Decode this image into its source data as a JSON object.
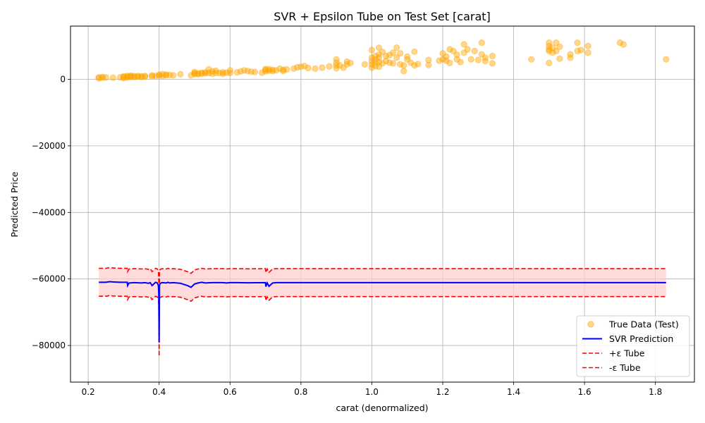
{
  "chart_data": {
    "type": "scatter",
    "title": "SVR + Epsilon Tube on Test Set [carat]",
    "xlabel": "carat (denormalized)",
    "ylabel": "Predicted Price",
    "xlim": [
      0.15,
      1.91
    ],
    "ylim": [
      -91000,
      16000
    ],
    "grid": true,
    "legend_position": "lower-right",
    "x_ticks": [
      0.2,
      0.4,
      0.6,
      0.8,
      1.0,
      1.2,
      1.4,
      1.6,
      1.8
    ],
    "x_tick_labels": [
      "0.2",
      "0.4",
      "0.6",
      "0.8",
      "1.0",
      "1.2",
      "1.4",
      "1.6",
      "1.8"
    ],
    "y_ticks": [
      0,
      -20000,
      -40000,
      -60000,
      -80000
    ],
    "y_tick_labels": [
      "0",
      "−20000",
      "−40000",
      "−60000",
      "−80000"
    ],
    "colors": {
      "true_data": "#ffa500",
      "prediction": "#0000ff",
      "tube": "#ff0000",
      "tube_fill": "#ffcccc",
      "grid": "#b0b0b0"
    },
    "series": [
      {
        "name": "True Data (Test)",
        "kind": "scatter",
        "x": [
          0.23,
          0.23,
          0.24,
          0.24,
          0.25,
          0.27,
          0.29,
          0.3,
          0.3,
          0.3,
          0.31,
          0.31,
          0.31,
          0.32,
          0.32,
          0.32,
          0.33,
          0.33,
          0.34,
          0.34,
          0.35,
          0.35,
          0.36,
          0.36,
          0.38,
          0.38,
          0.39,
          0.4,
          0.4,
          0.41,
          0.41,
          0.42,
          0.42,
          0.43,
          0.44,
          0.46,
          0.49,
          0.5,
          0.5,
          0.5,
          0.51,
          0.51,
          0.52,
          0.52,
          0.53,
          0.53,
          0.54,
          0.54,
          0.55,
          0.55,
          0.56,
          0.56,
          0.57,
          0.58,
          0.58,
          0.59,
          0.6,
          0.6,
          0.62,
          0.63,
          0.64,
          0.65,
          0.66,
          0.67,
          0.69,
          0.7,
          0.7,
          0.7,
          0.71,
          0.71,
          0.72,
          0.72,
          0.73,
          0.74,
          0.75,
          0.75,
          0.76,
          0.78,
          0.79,
          0.8,
          0.81,
          0.82,
          0.84,
          0.86,
          0.88,
          0.9,
          0.9,
          0.9,
          0.9,
          0.91,
          0.92,
          0.93,
          0.93,
          0.94,
          0.98,
          1.0,
          1.0,
          1.0,
          1.0,
          1.0,
          1.01,
          1.01,
          1.01,
          1.01,
          1.02,
          1.02,
          1.02,
          1.02,
          1.02,
          1.03,
          1.03,
          1.04,
          1.04,
          1.05,
          1.05,
          1.06,
          1.06,
          1.07,
          1.07,
          1.08,
          1.08,
          1.09,
          1.09,
          1.1,
          1.1,
          1.11,
          1.12,
          1.12,
          1.13,
          1.16,
          1.16,
          1.19,
          1.2,
          1.2,
          1.21,
          1.21,
          1.22,
          1.22,
          1.23,
          1.24,
          1.24,
          1.25,
          1.26,
          1.26,
          1.27,
          1.28,
          1.29,
          1.3,
          1.31,
          1.31,
          1.32,
          1.32,
          1.34,
          1.34,
          1.45,
          1.5,
          1.5,
          1.5,
          1.5,
          1.5,
          1.51,
          1.51,
          1.52,
          1.52,
          1.53,
          1.53,
          1.56,
          1.56,
          1.58,
          1.58,
          1.59,
          1.61,
          1.61,
          1.7,
          1.71,
          1.83
        ],
        "y": [
          300,
          600,
          500,
          700,
          550,
          500,
          600,
          700,
          400,
          900,
          800,
          1000,
          600,
          700,
          900,
          1100,
          650,
          950,
          800,
          1000,
          700,
          900,
          800,
          1000,
          900,
          1200,
          1000,
          1100,
          1400,
          1000,
          1600,
          1200,
          1400,
          1300,
          1200,
          1500,
          1200,
          1600,
          1800,
          2200,
          1800,
          1500,
          2000,
          1700,
          1800,
          2100,
          1900,
          3000,
          1700,
          2400,
          1900,
          2600,
          1900,
          1700,
          2100,
          2000,
          1900,
          2700,
          2100,
          2400,
          2700,
          2500,
          2300,
          2200,
          2000,
          2400,
          2800,
          3100,
          2600,
          3000,
          2500,
          2900,
          2700,
          3200,
          2500,
          2900,
          3000,
          3200,
          3600,
          3800,
          4000,
          3400,
          3200,
          3500,
          3900,
          3300,
          4200,
          5000,
          6000,
          4200,
          3500,
          4500,
          5300,
          4900,
          4500,
          3500,
          4500,
          5500,
          6500,
          8800,
          4000,
          5000,
          6000,
          7000,
          3800,
          5200,
          6500,
          7500,
          9500,
          4800,
          8200,
          5500,
          7000,
          5000,
          7300,
          4800,
          8000,
          6500,
          9500,
          4500,
          7800,
          2500,
          4200,
          6000,
          6800,
          5000,
          4200,
          8300,
          4600,
          4300,
          5800,
          5600,
          7800,
          6000,
          6800,
          5600,
          9000,
          4900,
          8500,
          6000,
          7400,
          5200,
          8000,
          10500,
          9000,
          6000,
          8500,
          5800,
          7500,
          11000,
          5500,
          6500,
          4800,
          7000,
          6000,
          4900,
          9000,
          10000,
          11000,
          8500,
          9500,
          8000,
          11000,
          8500,
          6200,
          9800,
          6500,
          7500,
          8500,
          11000,
          8800,
          8000,
          10000,
          11000,
          10500,
          6000
        ]
      },
      {
        "name": "SVR Prediction",
        "kind": "line",
        "x": [
          0.23,
          0.25,
          0.26,
          0.27,
          0.29,
          0.31,
          0.311,
          0.315,
          0.33,
          0.35,
          0.36,
          0.37,
          0.375,
          0.38,
          0.39,
          0.395,
          0.398,
          0.399,
          0.4,
          0.401,
          0.402,
          0.405,
          0.41,
          0.42,
          0.425,
          0.43,
          0.44,
          0.46,
          0.48,
          0.49,
          0.5,
          0.51,
          0.52,
          0.53,
          0.55,
          0.58,
          0.59,
          0.6,
          0.62,
          0.65,
          0.7,
          0.701,
          0.705,
          0.71,
          0.72,
          0.73,
          0.75,
          0.8,
          0.9,
          1.0,
          1.2,
          1.5,
          1.8,
          1.83
        ],
        "y": [
          -61000,
          -61000,
          -60800,
          -60900,
          -61000,
          -61000,
          -62000,
          -61200,
          -61100,
          -61200,
          -61100,
          -61300,
          -61100,
          -62000,
          -61000,
          -61200,
          -62000,
          -64500,
          -79000,
          -62000,
          -61500,
          -61200,
          -61100,
          -61200,
          -61000,
          -61200,
          -61100,
          -61300,
          -62000,
          -62500,
          -61500,
          -61200,
          -61000,
          -61200,
          -61100,
          -61100,
          -61200,
          -61100,
          -61100,
          -61150,
          -61100,
          -62300,
          -61200,
          -62200,
          -61200,
          -61100,
          -61100,
          -61100,
          -61100,
          -61100,
          -61100,
          -61100,
          -61100,
          -61100
        ]
      },
      {
        "name": "+ε Tube",
        "kind": "dashed",
        "offset": 4200
      },
      {
        "name": "-ε Tube",
        "kind": "dashed",
        "offset": -4200
      }
    ]
  }
}
